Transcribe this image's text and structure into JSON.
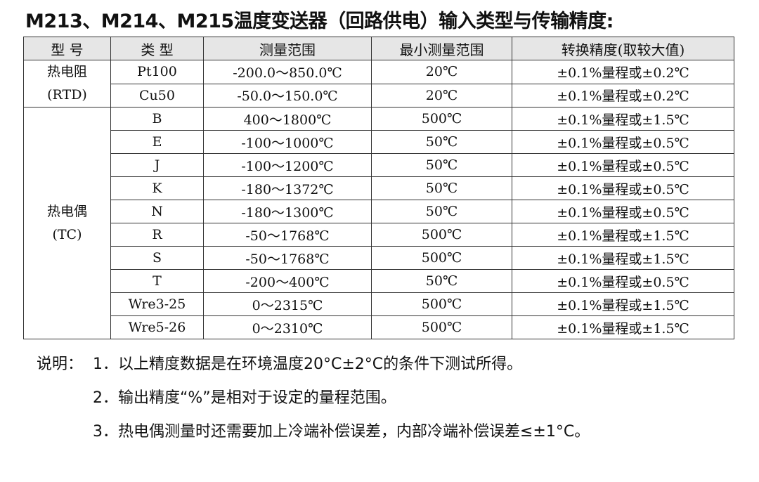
{
  "title": "M213、M214、M215温度变送器（回路供电）输入类型与传输精度:",
  "table": {
    "headers": [
      "型 号",
      "类 型",
      "测量范围",
      "最小测量范围",
      "转换精度(取较大值)"
    ],
    "groups": [
      {
        "name": "热电阻",
        "sub": "(RTD)",
        "rows": [
          [
            "Pt100",
            "-200.0～850.0℃",
            "20℃",
            "±0.1%量程或±0.2℃"
          ],
          [
            "Cu50",
            "-50.0～150.0℃",
            "20℃",
            "±0.1%量程或±0.2℃"
          ]
        ]
      },
      {
        "name": "热电偶",
        "sub": "(TC)",
        "rows": [
          [
            "B",
            "400～1800℃",
            "500℃",
            "±0.1%量程或±1.5℃"
          ],
          [
            "E",
            "-100～1000℃",
            "50℃",
            "±0.1%量程或±0.5℃"
          ],
          [
            "J",
            "-100～1200℃",
            "50℃",
            "±0.1%量程或±0.5℃"
          ],
          [
            "K",
            "-180～1372℃",
            "50℃",
            "±0.1%量程或±0.5℃"
          ],
          [
            "N",
            "-180～1300℃",
            "50℃",
            "±0.1%量程或±0.5℃"
          ],
          [
            "R",
            "-50～1768℃",
            "500℃",
            "±0.1%量程或±1.5℃"
          ],
          [
            "S",
            "-50～1768℃",
            "500℃",
            "±0.1%量程或±1.5℃"
          ],
          [
            "T",
            "-200～400℃",
            "50℃",
            "±0.1%量程或±0.5℃"
          ],
          [
            "Wre3-25",
            "0～2315℃",
            "500℃",
            "±0.1%量程或±1.5℃"
          ],
          [
            "Wre5-26",
            "0～2310℃",
            "500℃",
            "±0.1%量程或±1.5℃"
          ]
        ]
      }
    ]
  },
  "notes": {
    "label": "说明：",
    "items": [
      "1．以上精度数据是在环境温度20°C±2°C的条件下测试所得。",
      "2．输出精度“%”是相对于设定的量程范围。",
      "3．热电偶测量时还需要加上冷端补偿误差，内部冷端补偿误差≤±1°C。"
    ]
  }
}
